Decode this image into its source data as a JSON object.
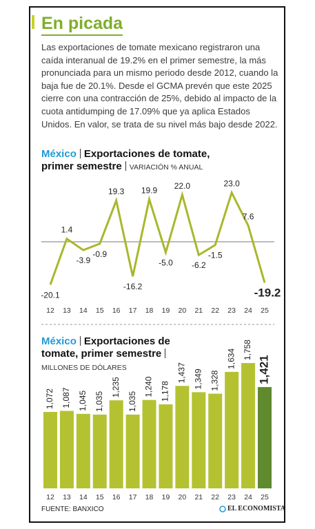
{
  "header": {
    "title": "En picada",
    "body": "Las exportaciones de tomate mexicano registraron una caída interanual de 19.2% en el primer semestre, la más pronunciada para un mismo periodo desde 2012, cuando la baja fue de 20.1%. Desde el GCMA prevén que este 2025 cierre con una contracción de 25%, debido al impacto de la cuota antidumping de 17.09% que ya aplica Estados Unidos. En valor, se trata de su nivel más bajo desde 2022."
  },
  "chart_data": [
    {
      "type": "line",
      "tag": "México",
      "title": "Exportaciones de tomate, primer semestre",
      "subtitle": "VARIACIÓN % ANUAL",
      "categories": [
        "12",
        "13",
        "14",
        "15",
        "16",
        "17",
        "18",
        "19",
        "20",
        "21",
        "22",
        "23",
        "24",
        "25"
      ],
      "values": [
        -20.1,
        1.4,
        -3.9,
        -0.9,
        19.3,
        -16.2,
        19.9,
        -5.0,
        22.0,
        -6.2,
        -1.5,
        23.0,
        7.6,
        -19.2
      ],
      "value_labels": [
        "-20.1",
        "1.4",
        "-3.9",
        "-0.9",
        "19.3",
        "-16.2",
        "19.9",
        "-5.0",
        "22.0",
        "-6.2",
        "-1.5",
        "23.0",
        "7.6",
        "-19.2"
      ],
      "color": "#a9b72c",
      "ylim": [
        -25,
        30
      ]
    },
    {
      "type": "bar",
      "tag": "México",
      "title": "Exportaciones de tomate, primer semestre",
      "subtitle": "MILLONES DE DÓLARES",
      "categories": [
        "12",
        "13",
        "14",
        "15",
        "16",
        "17",
        "18",
        "19",
        "20",
        "21",
        "22",
        "23",
        "24",
        "25"
      ],
      "values": [
        1072,
        1087,
        1045,
        1035,
        1235,
        1035,
        1240,
        1178,
        1437,
        1349,
        1328,
        1634,
        1758,
        1421
      ],
      "value_labels": [
        "1,072",
        "1,087",
        "1,045",
        "1,035",
        "1,235",
        "1,035",
        "1,240",
        "1,178",
        "1,437",
        "1,349",
        "1,328",
        "1,634",
        "1,758",
        "1,421"
      ],
      "colors": [
        "#b4c232",
        "#b4c232",
        "#b4c232",
        "#b4c232",
        "#b4c232",
        "#b4c232",
        "#b4c232",
        "#b4c232",
        "#b4c232",
        "#b4c232",
        "#b4c232",
        "#b4c232",
        "#b4c232",
        "#5f8a2e"
      ],
      "ylim": [
        0,
        2000
      ]
    }
  ],
  "footer": {
    "source": "FUENTE: BANXICO",
    "logo": "EL ECONOMISTA"
  }
}
